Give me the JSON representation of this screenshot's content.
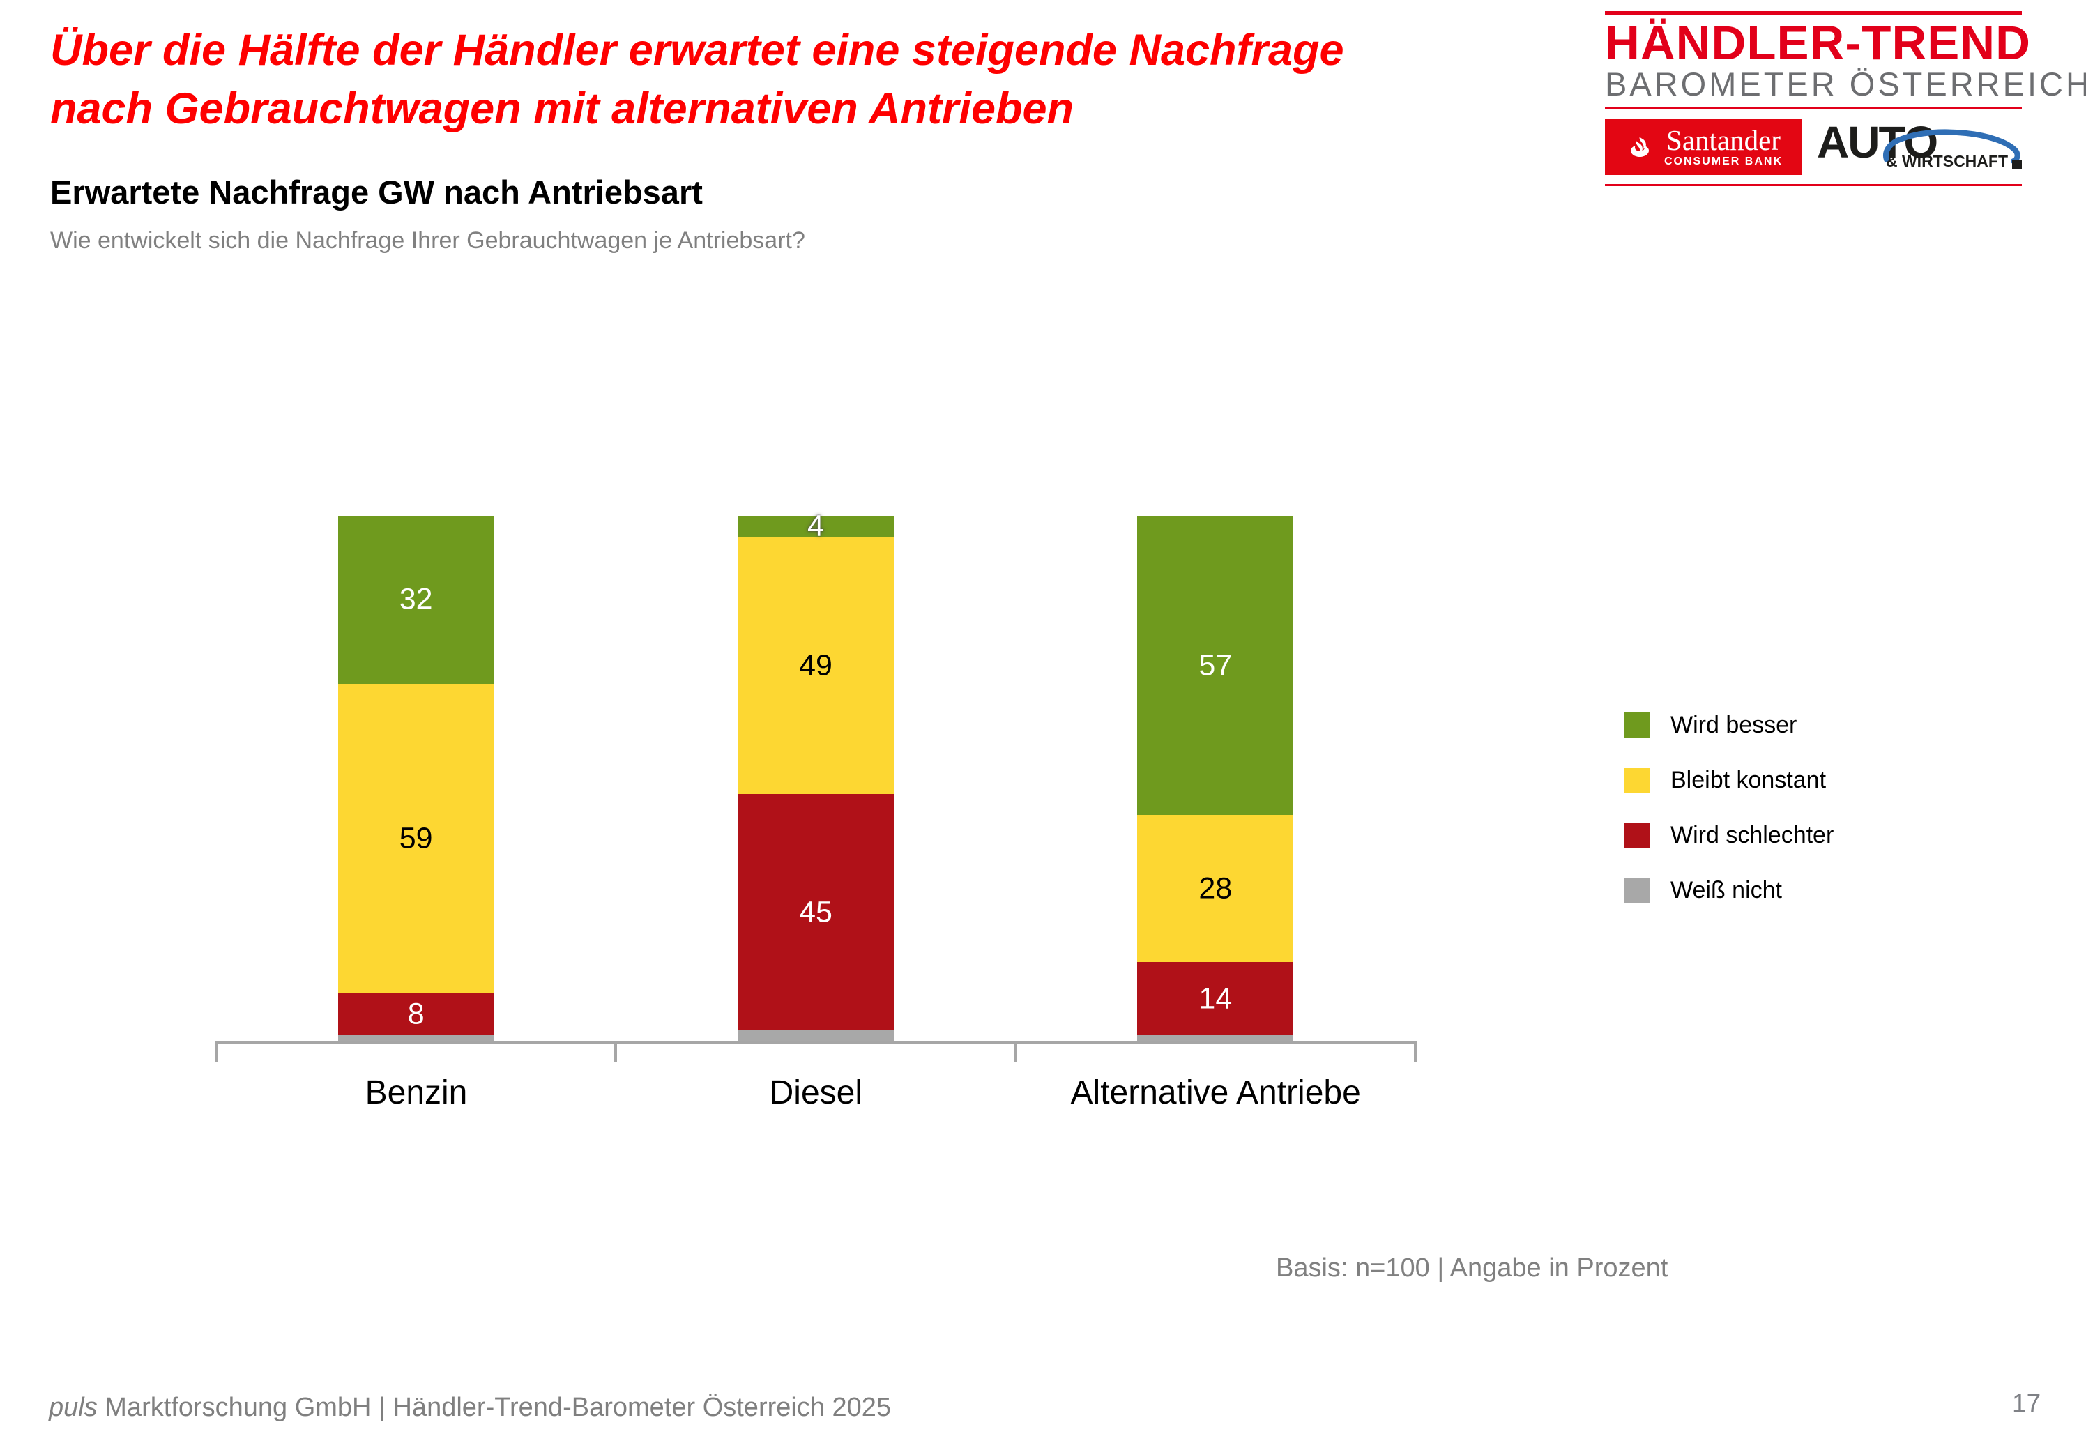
{
  "header": {
    "title_line1": "Über die Hälfte der Händler erwartet eine steigende Nachfrage",
    "title_line2": "nach Gebrauchtwagen mit alternativen Antrieben",
    "title_color": "#fe0000",
    "chart_title": "Erwartete Nachfrage GW nach Antriebsart",
    "chart_question": "Wie entwickelt sich die Nachfrage Ihrer Gebrauchtwagen je Antriebsart?"
  },
  "logo": {
    "line1": "HÄNDLER-TREND",
    "line2": "BAROMETER ÖSTERREICH",
    "line1_color": "#e2001a",
    "line2_color": "#6d6e71",
    "santander_word": "Santander",
    "santander_sub": "CONSUMER BANK",
    "santander_red": "#e30613",
    "auto_word": "AUTO",
    "wirtschaft_word": "& WIRTSCHAFT",
    "car_blue": "#2f6eb5"
  },
  "chart_data": {
    "type": "bar",
    "subtype": "stacked_percent_column",
    "title": "Erwartete Nachfrage GW nach Antriebsart",
    "categories": [
      "Benzin",
      "Diesel",
      "Alternative Antriebe"
    ],
    "series": [
      {
        "name": "Wird besser",
        "color": "#6f9a1e",
        "label_color": "#ffffff",
        "values": [
          32,
          4,
          57
        ]
      },
      {
        "name": "Bleibt konstant",
        "color": "#fdd732",
        "label_color": "#000000",
        "values": [
          59,
          49,
          28
        ]
      },
      {
        "name": "Wird schlechter",
        "color": "#b01118",
        "label_color": "#ffffff",
        "values": [
          8,
          45,
          14
        ]
      },
      {
        "name": "Weiß nicht",
        "color": "#a8a8a8",
        "label_color": null,
        "values": [
          1,
          2,
          1
        ],
        "labels_hidden": true
      }
    ],
    "stack_order": "top-to-bottom",
    "ylim": [
      0,
      100
    ],
    "unit": "percent",
    "grid": false,
    "legend_position": "right",
    "axis_color": "#a6a6a6"
  },
  "basis_note": "Basis: n=100 | Angabe in Prozent",
  "footer": {
    "brand": "puls",
    "rest": " Marktforschung GmbH | Händler-Trend-Barometer Österreich 2025"
  },
  "page_number": "17"
}
